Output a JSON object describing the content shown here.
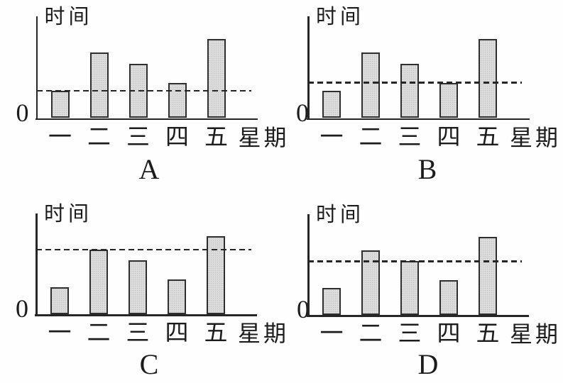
{
  "figure": {
    "ink_color": "#262626",
    "bar_fill": "#dcdcdc",
    "background": "#fefefe"
  },
  "chart_data": [
    {
      "type": "bar",
      "title": "A",
      "ylabel": "时间",
      "xlabel": "星期",
      "origin_label": "0",
      "categories": [
        "一",
        "二",
        "三",
        "四",
        "五"
      ],
      "values": [
        1.0,
        2.4,
        2.0,
        1.3,
        2.9
      ],
      "dashed_line": 1.0,
      "dashed_line_through_category": "一",
      "ylim": [
        0,
        3.75
      ],
      "grid": false,
      "legend": false
    },
    {
      "type": "bar",
      "title": "B",
      "ylabel": "时间",
      "xlabel": "星期",
      "origin_label": "0",
      "categories": [
        "一",
        "二",
        "三",
        "四",
        "五"
      ],
      "values": [
        1.0,
        2.4,
        2.0,
        1.3,
        2.9
      ],
      "dashed_line": 1.3,
      "dashed_line_through_category": "四",
      "ylim": [
        0,
        3.75
      ],
      "grid": false,
      "legend": false
    },
    {
      "type": "bar",
      "title": "C",
      "ylabel": "时间",
      "xlabel": "星期",
      "origin_label": "0",
      "categories": [
        "一",
        "二",
        "三",
        "四",
        "五"
      ],
      "values": [
        1.0,
        2.4,
        2.0,
        1.3,
        2.9
      ],
      "dashed_line": 2.4,
      "dashed_line_through_category": "二",
      "ylim": [
        0,
        3.75
      ],
      "grid": false,
      "legend": false
    },
    {
      "type": "bar",
      "title": "D",
      "ylabel": "时间",
      "xlabel": "星期",
      "origin_label": "0",
      "categories": [
        "一",
        "二",
        "三",
        "四",
        "五"
      ],
      "values": [
        1.0,
        2.4,
        2.0,
        1.3,
        2.9
      ],
      "dashed_line": 2.0,
      "dashed_line_through_category": "三",
      "ylim": [
        0,
        3.75
      ],
      "grid": false,
      "legend": false
    }
  ]
}
